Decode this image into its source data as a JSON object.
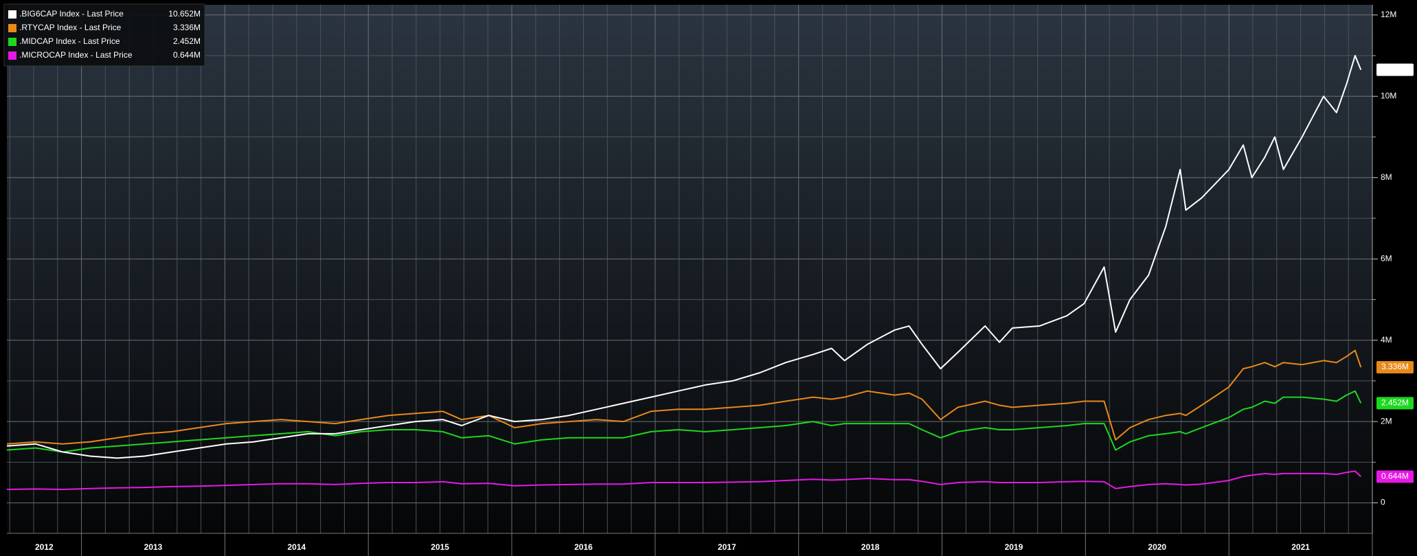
{
  "chart_data": {
    "type": "line",
    "x": [
      2012.48,
      2012.68,
      2012.87,
      2013.06,
      2013.25,
      2013.44,
      2013.63,
      2013.82,
      2014.01,
      2014.2,
      2014.39,
      2014.58,
      2014.77,
      2014.95,
      2015.14,
      2015.33,
      2015.52,
      2015.65,
      2015.84,
      2016.02,
      2016.21,
      2016.4,
      2016.59,
      2016.78,
      2016.97,
      2017.16,
      2017.35,
      2017.54,
      2017.73,
      2017.91,
      2018.1,
      2018.23,
      2018.32,
      2018.48,
      2018.67,
      2018.77,
      2018.86,
      2018.99,
      2019.11,
      2019.3,
      2019.4,
      2019.49,
      2019.68,
      2019.87,
      2019.99,
      2020.13,
      2020.21,
      2020.31,
      2020.44,
      2020.56,
      2020.66,
      2020.7,
      2020.81,
      2021.0,
      2021.1,
      2021.16,
      2021.25,
      2021.32,
      2021.38,
      2021.51,
      2021.66,
      2021.75,
      2021.82,
      2021.88,
      2021.92
    ],
    "series": [
      {
        "name": ".BIG6CAP Index - Last Price",
        "label": "10.652M",
        "color": "#ffffff",
        "text_color": "#000000",
        "values": [
          1.4,
          1.45,
          1.25,
          1.15,
          1.1,
          1.15,
          1.25,
          1.35,
          1.45,
          1.5,
          1.6,
          1.7,
          1.7,
          1.8,
          1.9,
          2.0,
          2.05,
          1.9,
          2.15,
          2.0,
          2.05,
          2.15,
          2.3,
          2.45,
          2.6,
          2.75,
          2.9,
          3.0,
          3.2,
          3.45,
          3.65,
          3.8,
          3.5,
          3.9,
          4.25,
          4.35,
          3.9,
          3.3,
          3.7,
          4.35,
          3.95,
          4.3,
          4.35,
          4.6,
          4.9,
          5.8,
          4.2,
          5.0,
          5.6,
          6.8,
          8.2,
          7.2,
          7.5,
          8.2,
          8.8,
          8.0,
          8.5,
          9.0,
          8.2,
          9.0,
          10.0,
          9.6,
          10.3,
          11.0,
          10.652
        ]
      },
      {
        "name": ".RTYCAP Index - Last Price",
        "label": "3.336M",
        "color": "#e8891a",
        "text_color": "#000000",
        "values": [
          1.45,
          1.5,
          1.45,
          1.5,
          1.6,
          1.7,
          1.75,
          1.85,
          1.95,
          2.0,
          2.05,
          2.0,
          1.95,
          2.05,
          2.15,
          2.2,
          2.25,
          2.05,
          2.15,
          1.85,
          1.95,
          2.0,
          2.05,
          2.0,
          2.25,
          2.3,
          2.3,
          2.35,
          2.4,
          2.5,
          2.6,
          2.55,
          2.6,
          2.75,
          2.65,
          2.7,
          2.55,
          2.05,
          2.35,
          2.5,
          2.4,
          2.35,
          2.4,
          2.45,
          2.5,
          2.5,
          1.55,
          1.85,
          2.05,
          2.15,
          2.2,
          2.15,
          2.4,
          2.85,
          3.3,
          3.35,
          3.45,
          3.35,
          3.45,
          3.4,
          3.5,
          3.45,
          3.6,
          3.75,
          3.336
        ]
      },
      {
        "name": ".MIDCAP Index - Last Price",
        "label": "2.452M",
        "color": "#1ed81e",
        "text_color": "#000000",
        "values": [
          1.3,
          1.35,
          1.25,
          1.35,
          1.4,
          1.45,
          1.5,
          1.55,
          1.6,
          1.65,
          1.7,
          1.75,
          1.65,
          1.75,
          1.8,
          1.8,
          1.75,
          1.6,
          1.65,
          1.45,
          1.55,
          1.6,
          1.6,
          1.6,
          1.75,
          1.8,
          1.75,
          1.8,
          1.85,
          1.9,
          2.0,
          1.9,
          1.95,
          1.95,
          1.95,
          1.95,
          1.8,
          1.6,
          1.75,
          1.85,
          1.8,
          1.8,
          1.85,
          1.9,
          1.95,
          1.95,
          1.3,
          1.5,
          1.65,
          1.7,
          1.75,
          1.7,
          1.85,
          2.1,
          2.3,
          2.35,
          2.5,
          2.45,
          2.6,
          2.6,
          2.55,
          2.5,
          2.65,
          2.75,
          2.452
        ]
      },
      {
        "name": ".MICROCAP Index - Last Price",
        "label": "0.644M",
        "color": "#e619e6",
        "text_color": "#ffffff",
        "values": [
          0.33,
          0.34,
          0.33,
          0.35,
          0.37,
          0.38,
          0.4,
          0.41,
          0.43,
          0.45,
          0.47,
          0.47,
          0.45,
          0.48,
          0.5,
          0.5,
          0.52,
          0.47,
          0.48,
          0.42,
          0.44,
          0.45,
          0.46,
          0.46,
          0.5,
          0.5,
          0.5,
          0.51,
          0.52,
          0.55,
          0.58,
          0.56,
          0.57,
          0.6,
          0.57,
          0.57,
          0.53,
          0.45,
          0.5,
          0.52,
          0.5,
          0.5,
          0.5,
          0.52,
          0.53,
          0.52,
          0.35,
          0.4,
          0.45,
          0.47,
          0.45,
          0.44,
          0.46,
          0.55,
          0.65,
          0.68,
          0.72,
          0.7,
          0.72,
          0.72,
          0.72,
          0.7,
          0.75,
          0.78,
          0.644
        ]
      }
    ],
    "xlim": [
      2012.48,
      2022.0
    ],
    "xticks": [
      {
        "value": 2012.5,
        "label": "2012"
      },
      {
        "value": 2013.5,
        "label": "2013"
      },
      {
        "value": 2014.5,
        "label": "2014"
      },
      {
        "value": 2015.5,
        "label": "2015"
      },
      {
        "value": 2016.5,
        "label": "2016"
      },
      {
        "value": 2017.5,
        "label": "2017"
      },
      {
        "value": 2018.5,
        "label": "2018"
      },
      {
        "value": 2019.5,
        "label": "2019"
      },
      {
        "value": 2020.5,
        "label": "2020"
      },
      {
        "value": 2021.5,
        "label": "2021"
      }
    ],
    "ylim": [
      -0.75,
      12.25
    ],
    "yticks": [
      0,
      {
        "value": 2,
        "label": "2M"
      },
      {
        "value": 4,
        "label": "4M"
      },
      {
        "value": 6,
        "label": "6M"
      },
      {
        "value": 8,
        "label": "8M"
      },
      {
        "value": 10,
        "label": "10M"
      },
      {
        "value": 12,
        "label": "12M"
      }
    ],
    "yminor": [
      1,
      3,
      5,
      7,
      9,
      11
    ],
    "grid": true,
    "legend": "top-left"
  }
}
